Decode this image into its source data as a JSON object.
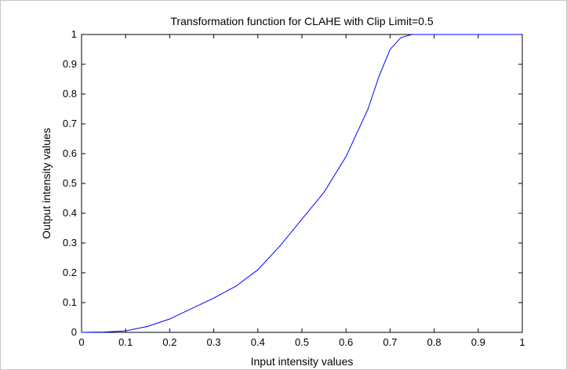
{
  "chart_data": {
    "type": "line",
    "title": "Transformation function for CLAHE with Clip Limit=0.5",
    "x_label": "Input intensity values",
    "y_label": "Output intensity values",
    "x": [
      0,
      0.05,
      0.1,
      0.15,
      0.2,
      0.25,
      0.3,
      0.35,
      0.4,
      0.45,
      0.5,
      0.55,
      0.6,
      0.65,
      0.675,
      0.7,
      0.725,
      0.75,
      0.8,
      0.9,
      1
    ],
    "series": [
      {
        "name": "Transformation function",
        "color": "#0000ff",
        "values": [
          0,
          0.001,
          0.005,
          0.02,
          0.045,
          0.08,
          0.115,
          0.155,
          0.21,
          0.29,
          0.38,
          0.47,
          0.59,
          0.75,
          0.86,
          0.95,
          0.99,
          1,
          1,
          1,
          1
        ]
      }
    ],
    "xlim": [
      0,
      1
    ],
    "ylim": [
      0,
      1
    ],
    "xticks": [
      0,
      0.1,
      0.2,
      0.3,
      0.4,
      0.5,
      0.6,
      0.7,
      0.8,
      0.9,
      1
    ],
    "yticks": [
      0,
      0.1,
      0.2,
      0.3,
      0.4,
      0.5,
      0.6,
      0.7,
      0.8,
      0.9,
      1
    ]
  }
}
